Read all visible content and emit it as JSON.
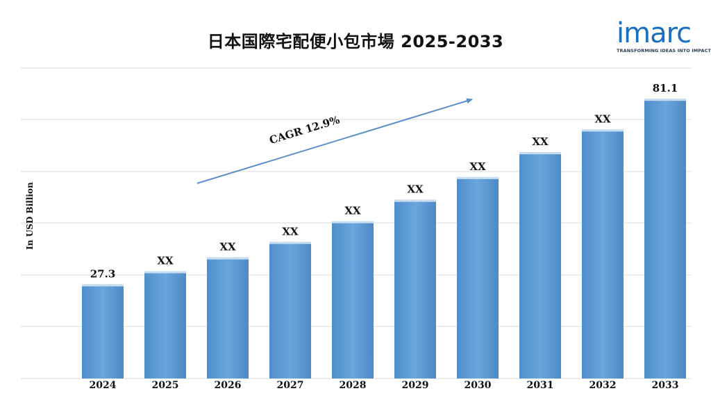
{
  "logo": {
    "word": "imarc",
    "tagline": "TRANSFORMING IDEAS INTO IMPACT"
  },
  "chart_data": {
    "type": "bar",
    "title": "日本国際宅配便小包市場 2025-2033",
    "ylabel": "In USD Billion",
    "xlabel": "",
    "categories": [
      "2024",
      "2025",
      "2026",
      "2027",
      "2028",
      "2029",
      "2030",
      "2031",
      "2032",
      "2033"
    ],
    "values": [
      27.3,
      31.1,
      35.1,
      39.6,
      45.6,
      51.8,
      58.4,
      65.6,
      72.2,
      81.1
    ],
    "data_labels": [
      "27.3",
      "XX",
      "XX",
      "XX",
      "XX",
      "XX",
      "XX",
      "XX",
      "XX",
      "81.1"
    ],
    "ylim": [
      0,
      90
    ],
    "grid": true,
    "annotation": "CAGR 12.9%",
    "colors": {
      "bar": "#5b9bd5",
      "bar_top": "#c9ddf1",
      "grid": "#d9d9d9",
      "arrow": "#5b8ec9"
    }
  }
}
